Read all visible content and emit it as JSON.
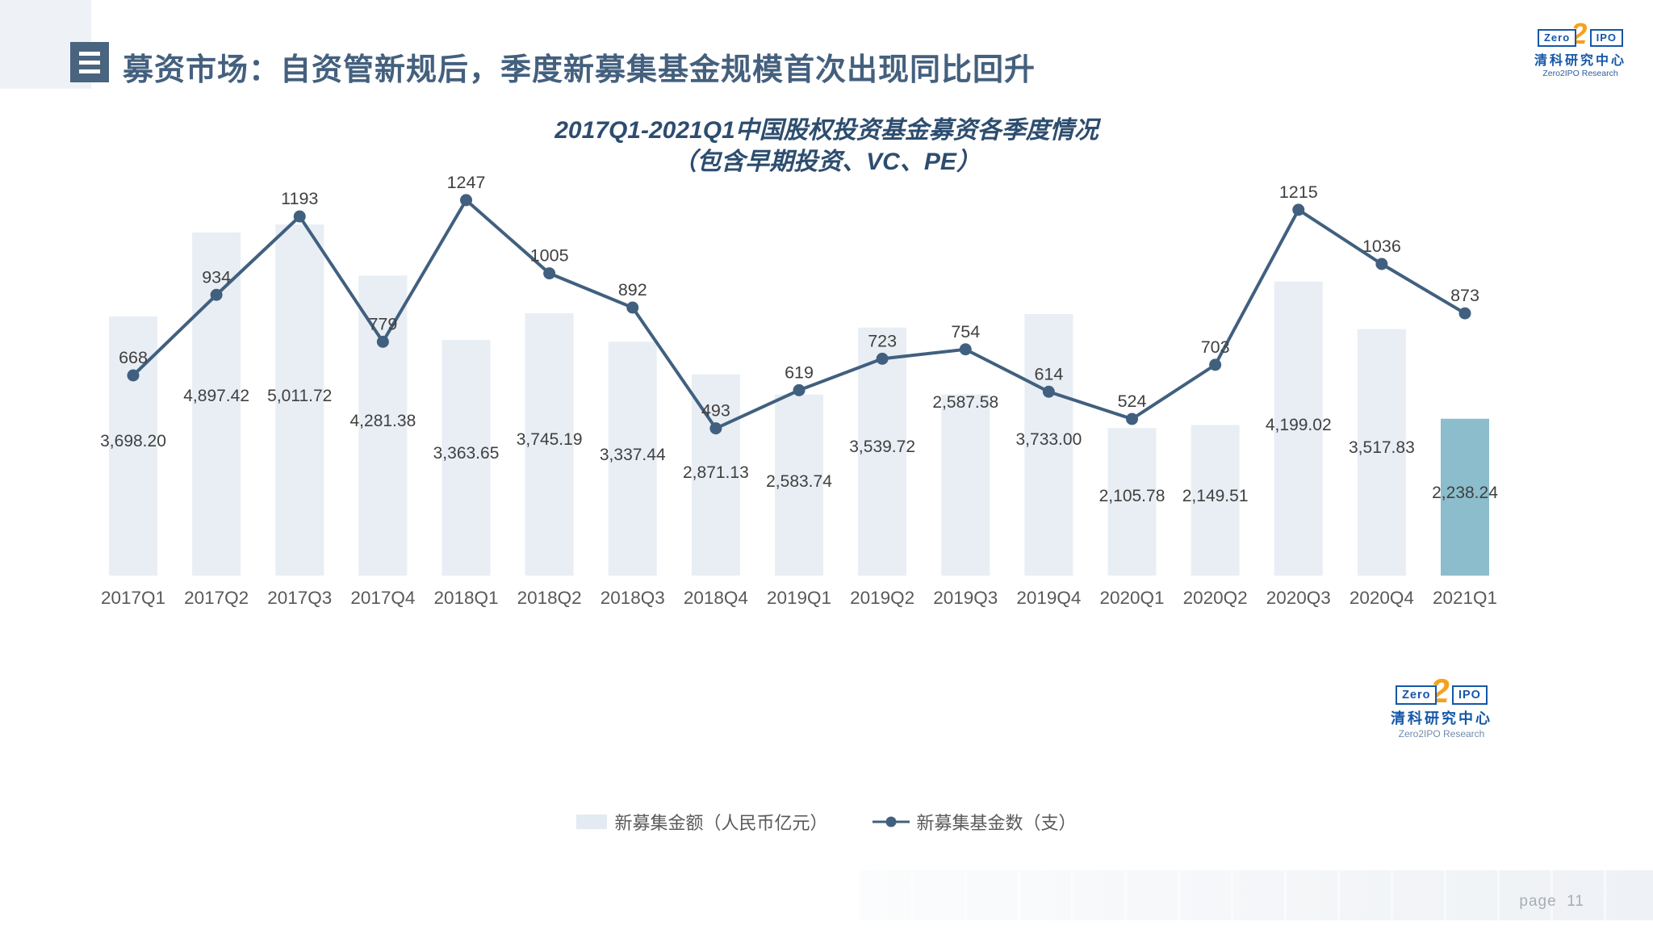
{
  "slide": {
    "header": {
      "title": "募资市场：自资管新规后，季度新募集基金规模首次出现同比回升"
    },
    "logo": {
      "zero": "Zero",
      "two": "2",
      "ipo": "IPO",
      "cn": "清科研究中心",
      "en": "Zero2IPO Research"
    },
    "footer": {
      "page_label": "page",
      "page_number": "11"
    }
  },
  "chart_data": {
    "type": "bar+line combo",
    "title": "2017Q1-2021Q1中国股权投资基金募资各季度情况",
    "subtitle": "（包含早期投资、VC、PE）",
    "categories": [
      "2017Q1",
      "2017Q2",
      "2017Q3",
      "2017Q4",
      "2018Q1",
      "2018Q2",
      "2018Q3",
      "2018Q4",
      "2019Q1",
      "2019Q2",
      "2019Q3",
      "2019Q4",
      "2020Q1",
      "2020Q2",
      "2020Q3",
      "2020Q4",
      "2021Q1"
    ],
    "series": [
      {
        "name": "新募集金额（人民币亿元）",
        "type": "bar",
        "values": [
          3698.2,
          4897.42,
          5011.72,
          4281.38,
          3363.65,
          3745.19,
          3337.44,
          2871.13,
          2583.74,
          3539.72,
          2587.58,
          3733.0,
          2105.78,
          2149.51,
          4199.02,
          3517.83,
          2238.24
        ],
        "labels": [
          "3,698.20",
          "4,897.42",
          "5,011.72",
          "4,281.38",
          "3,363.65",
          "3,745.19",
          "3,337.44",
          "2,871.13",
          "2,583.74",
          "3,539.72",
          "2,587.58",
          "3,733.00",
          "2,105.78",
          "2,149.51",
          "4,199.02",
          "3,517.83",
          "2,238.24"
        ],
        "color": "#E8EEF4",
        "highlight_color": "#8CBDCD",
        "highlight_index": 16
      },
      {
        "name": "新募集基金数（支）",
        "type": "line",
        "values": [
          668,
          934,
          1193,
          779,
          1247,
          1005,
          892,
          493,
          619,
          723,
          754,
          614,
          524,
          703,
          1215,
          1036,
          873
        ],
        "color": "#41607F"
      }
    ],
    "legend_position": "bottom",
    "grid": false,
    "value_axis_visible": false,
    "data_label_color": "#404040",
    "axis_label_color": "#595959"
  }
}
